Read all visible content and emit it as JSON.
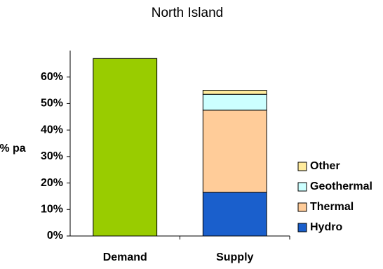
{
  "chart_data": {
    "type": "stacked-bar",
    "title": "North Island",
    "y_label": "% pa",
    "categories": [
      "Demand",
      "Supply"
    ],
    "series": [
      {
        "color": "#99cc00",
        "values": [
          67,
          null
        ]
      },
      {
        "name": "Hydro",
        "color": "#1a5fcc",
        "values": [
          null,
          16.5
        ]
      },
      {
        "name": "Thermal",
        "color": "#ffcc99",
        "values": [
          null,
          31
        ]
      },
      {
        "name": "Geothermal",
        "color": "#ccffff",
        "values": [
          null,
          6
        ]
      },
      {
        "name": "Other",
        "color": "#ffeb9c",
        "values": [
          null,
          1.5
        ]
      }
    ],
    "ylim": [
      0,
      70
    ],
    "yticks": [
      {
        "value": 0,
        "label": "0%"
      },
      {
        "value": 10,
        "label": "10%"
      },
      {
        "value": 20,
        "label": "20%"
      },
      {
        "value": 30,
        "label": "30%"
      },
      {
        "value": 40,
        "label": "40%"
      },
      {
        "value": 50,
        "label": "50%"
      },
      {
        "value": 60,
        "label": "60%"
      }
    ],
    "grid": false,
    "legend": "right"
  }
}
